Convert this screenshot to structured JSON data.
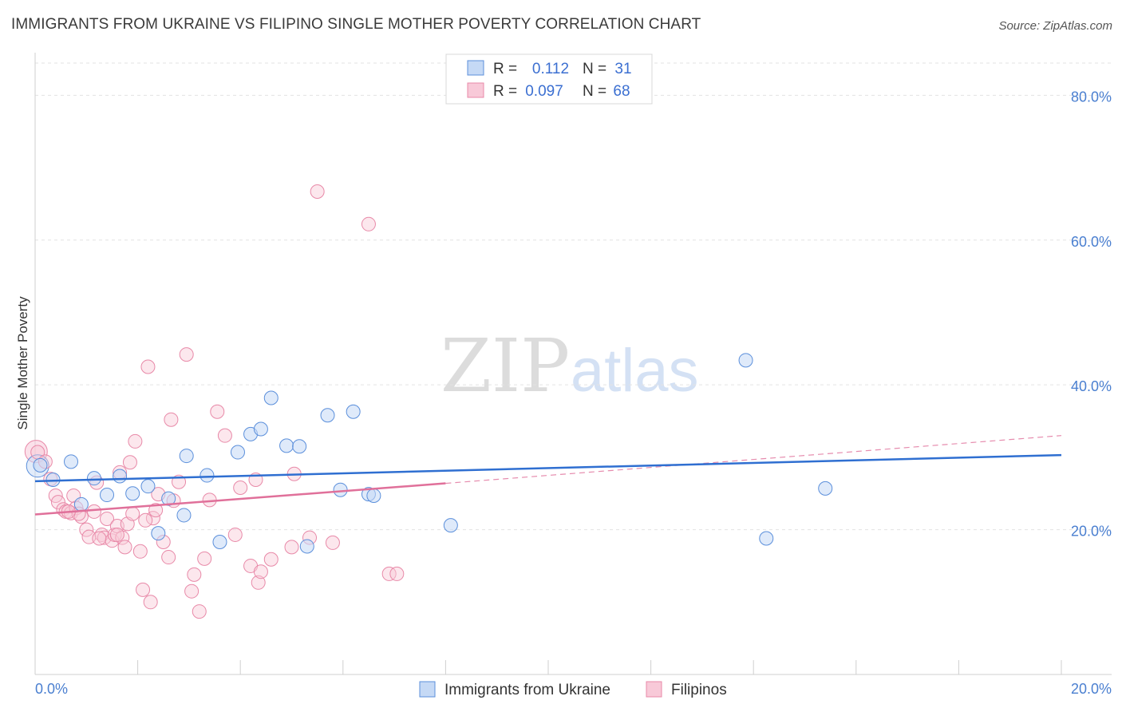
{
  "title": "IMMIGRANTS FROM UKRAINE VS FILIPINO SINGLE MOTHER POVERTY CORRELATION CHART",
  "source": "Source: ZipAtlas.com",
  "watermark": {
    "zip": "ZIP",
    "atlas": "atlas"
  },
  "legend_top": {
    "r_label": "R =",
    "n_label": "N =",
    "rows": [
      {
        "r": "0.112",
        "n": "31"
      },
      {
        "r": "0.097",
        "n": "68"
      }
    ]
  },
  "chart_data": {
    "type": "scatter",
    "title": "IMMIGRANTS FROM UKRAINE VS FILIPINO SINGLE MOTHER POVERTY CORRELATION CHART",
    "xlabel": "",
    "ylabel": "Single Mother Poverty",
    "xlim": [
      0,
      20
    ],
    "ylim": [
      0,
      85
    ],
    "x_tick_labels": [
      "0.0%",
      "20.0%"
    ],
    "y_ticks": [
      20,
      40,
      60,
      80
    ],
    "y_tick_labels": [
      "20.0%",
      "40.0%",
      "60.0%",
      "80.0%"
    ],
    "legend_position": "bottom",
    "colors": {
      "ukraine": "#5b8fdb",
      "filipinos": "#e889a8",
      "ukraine_fill": "#c5d9f5",
      "filipinos_fill": "#f8c9d8",
      "ukraine_line": "#2f6fd1",
      "filipinos_line": "#e0709a"
    },
    "series": [
      {
        "name": "Immigrants from Ukraine",
        "r": 0.112,
        "n": 31,
        "trend": {
          "x0": 0,
          "y0": 26.7,
          "x1": 20,
          "y1": 30.3
        },
        "points": [
          [
            0.1,
            28.9
          ],
          [
            0.35,
            26.9
          ],
          [
            0.7,
            29.4
          ],
          [
            1.15,
            27.1
          ],
          [
            0.9,
            23.5
          ],
          [
            1.4,
            24.8
          ],
          [
            1.65,
            27.4
          ],
          [
            1.9,
            25
          ],
          [
            2.2,
            26
          ],
          [
            2.4,
            19.5
          ],
          [
            2.6,
            24.3
          ],
          [
            2.9,
            22
          ],
          [
            2.95,
            30.2
          ],
          [
            3.35,
            27.5
          ],
          [
            3.6,
            18.3
          ],
          [
            3.95,
            30.7
          ],
          [
            4.2,
            33.2
          ],
          [
            4.4,
            33.9
          ],
          [
            4.6,
            38.2
          ],
          [
            4.9,
            31.6
          ],
          [
            5.15,
            31.5
          ],
          [
            5.3,
            17.7
          ],
          [
            5.7,
            35.8
          ],
          [
            5.95,
            25.5
          ],
          [
            6.2,
            36.3
          ],
          [
            6.5,
            24.9
          ],
          [
            6.6,
            24.7
          ],
          [
            8.1,
            20.6
          ],
          [
            13.85,
            43.4
          ],
          [
            14.25,
            18.8
          ],
          [
            15.4,
            25.7
          ]
        ]
      },
      {
        "name": "Filipinos",
        "r": 0.097,
        "n": 68,
        "trend": {
          "x0": 0,
          "y0": 22.1,
          "x1": 8,
          "y1": 26.4
        },
        "trend_ext": {
          "x0": 8,
          "y0": 26.4,
          "x1": 20,
          "y1": 33
        },
        "points": [
          [
            0.05,
            30.7
          ],
          [
            0.2,
            29.4
          ],
          [
            0.3,
            27
          ],
          [
            0.4,
            24.7
          ],
          [
            0.45,
            23.8
          ],
          [
            0.55,
            22.8
          ],
          [
            0.6,
            22.5
          ],
          [
            0.7,
            22.3
          ],
          [
            0.75,
            24.7
          ],
          [
            0.8,
            23
          ],
          [
            0.9,
            21.8
          ],
          [
            1.0,
            20
          ],
          [
            1.05,
            19
          ],
          [
            1.15,
            22.5
          ],
          [
            1.2,
            26.5
          ],
          [
            1.3,
            19.3
          ],
          [
            1.35,
            18.9
          ],
          [
            1.4,
            21.5
          ],
          [
            1.5,
            18.5
          ],
          [
            1.55,
            19.3
          ],
          [
            1.6,
            20.5
          ],
          [
            1.65,
            27.9
          ],
          [
            1.7,
            18.9
          ],
          [
            1.75,
            17.6
          ],
          [
            1.8,
            20.8
          ],
          [
            1.85,
            29.3
          ],
          [
            1.9,
            22.2
          ],
          [
            1.95,
            32.2
          ],
          [
            2.05,
            17
          ],
          [
            2.1,
            11.7
          ],
          [
            2.2,
            42.5
          ],
          [
            2.25,
            10
          ],
          [
            2.3,
            21.6
          ],
          [
            2.35,
            22.7
          ],
          [
            2.4,
            24.9
          ],
          [
            2.5,
            18.3
          ],
          [
            2.6,
            16.2
          ],
          [
            2.65,
            35.2
          ],
          [
            2.7,
            24
          ],
          [
            2.8,
            26.6
          ],
          [
            2.95,
            44.2
          ],
          [
            3.05,
            11.5
          ],
          [
            3.1,
            13.8
          ],
          [
            3.2,
            8.7
          ],
          [
            3.3,
            16
          ],
          [
            3.4,
            24.1
          ],
          [
            3.55,
            36.3
          ],
          [
            3.7,
            33
          ],
          [
            3.9,
            19.3
          ],
          [
            4.0,
            25.8
          ],
          [
            4.2,
            15
          ],
          [
            4.3,
            26.9
          ],
          [
            4.35,
            12.7
          ],
          [
            4.4,
            14.2
          ],
          [
            4.6,
            15.9
          ],
          [
            5.0,
            17.6
          ],
          [
            5.05,
            27.7
          ],
          [
            5.35,
            18.9
          ],
          [
            5.5,
            66.7
          ],
          [
            5.8,
            18.2
          ],
          [
            6.5,
            62.2
          ],
          [
            6.9,
            13.9
          ],
          [
            7.05,
            13.9
          ],
          [
            0.85,
            22.2
          ],
          [
            1.25,
            18.8
          ],
          [
            2.15,
            21.3
          ],
          [
            1.6,
            19.3
          ],
          [
            0.65,
            22.5
          ]
        ]
      }
    ]
  },
  "legend_bottom": {
    "items": [
      {
        "label": "Immigrants from Ukraine"
      },
      {
        "label": "Filipinos"
      }
    ]
  }
}
